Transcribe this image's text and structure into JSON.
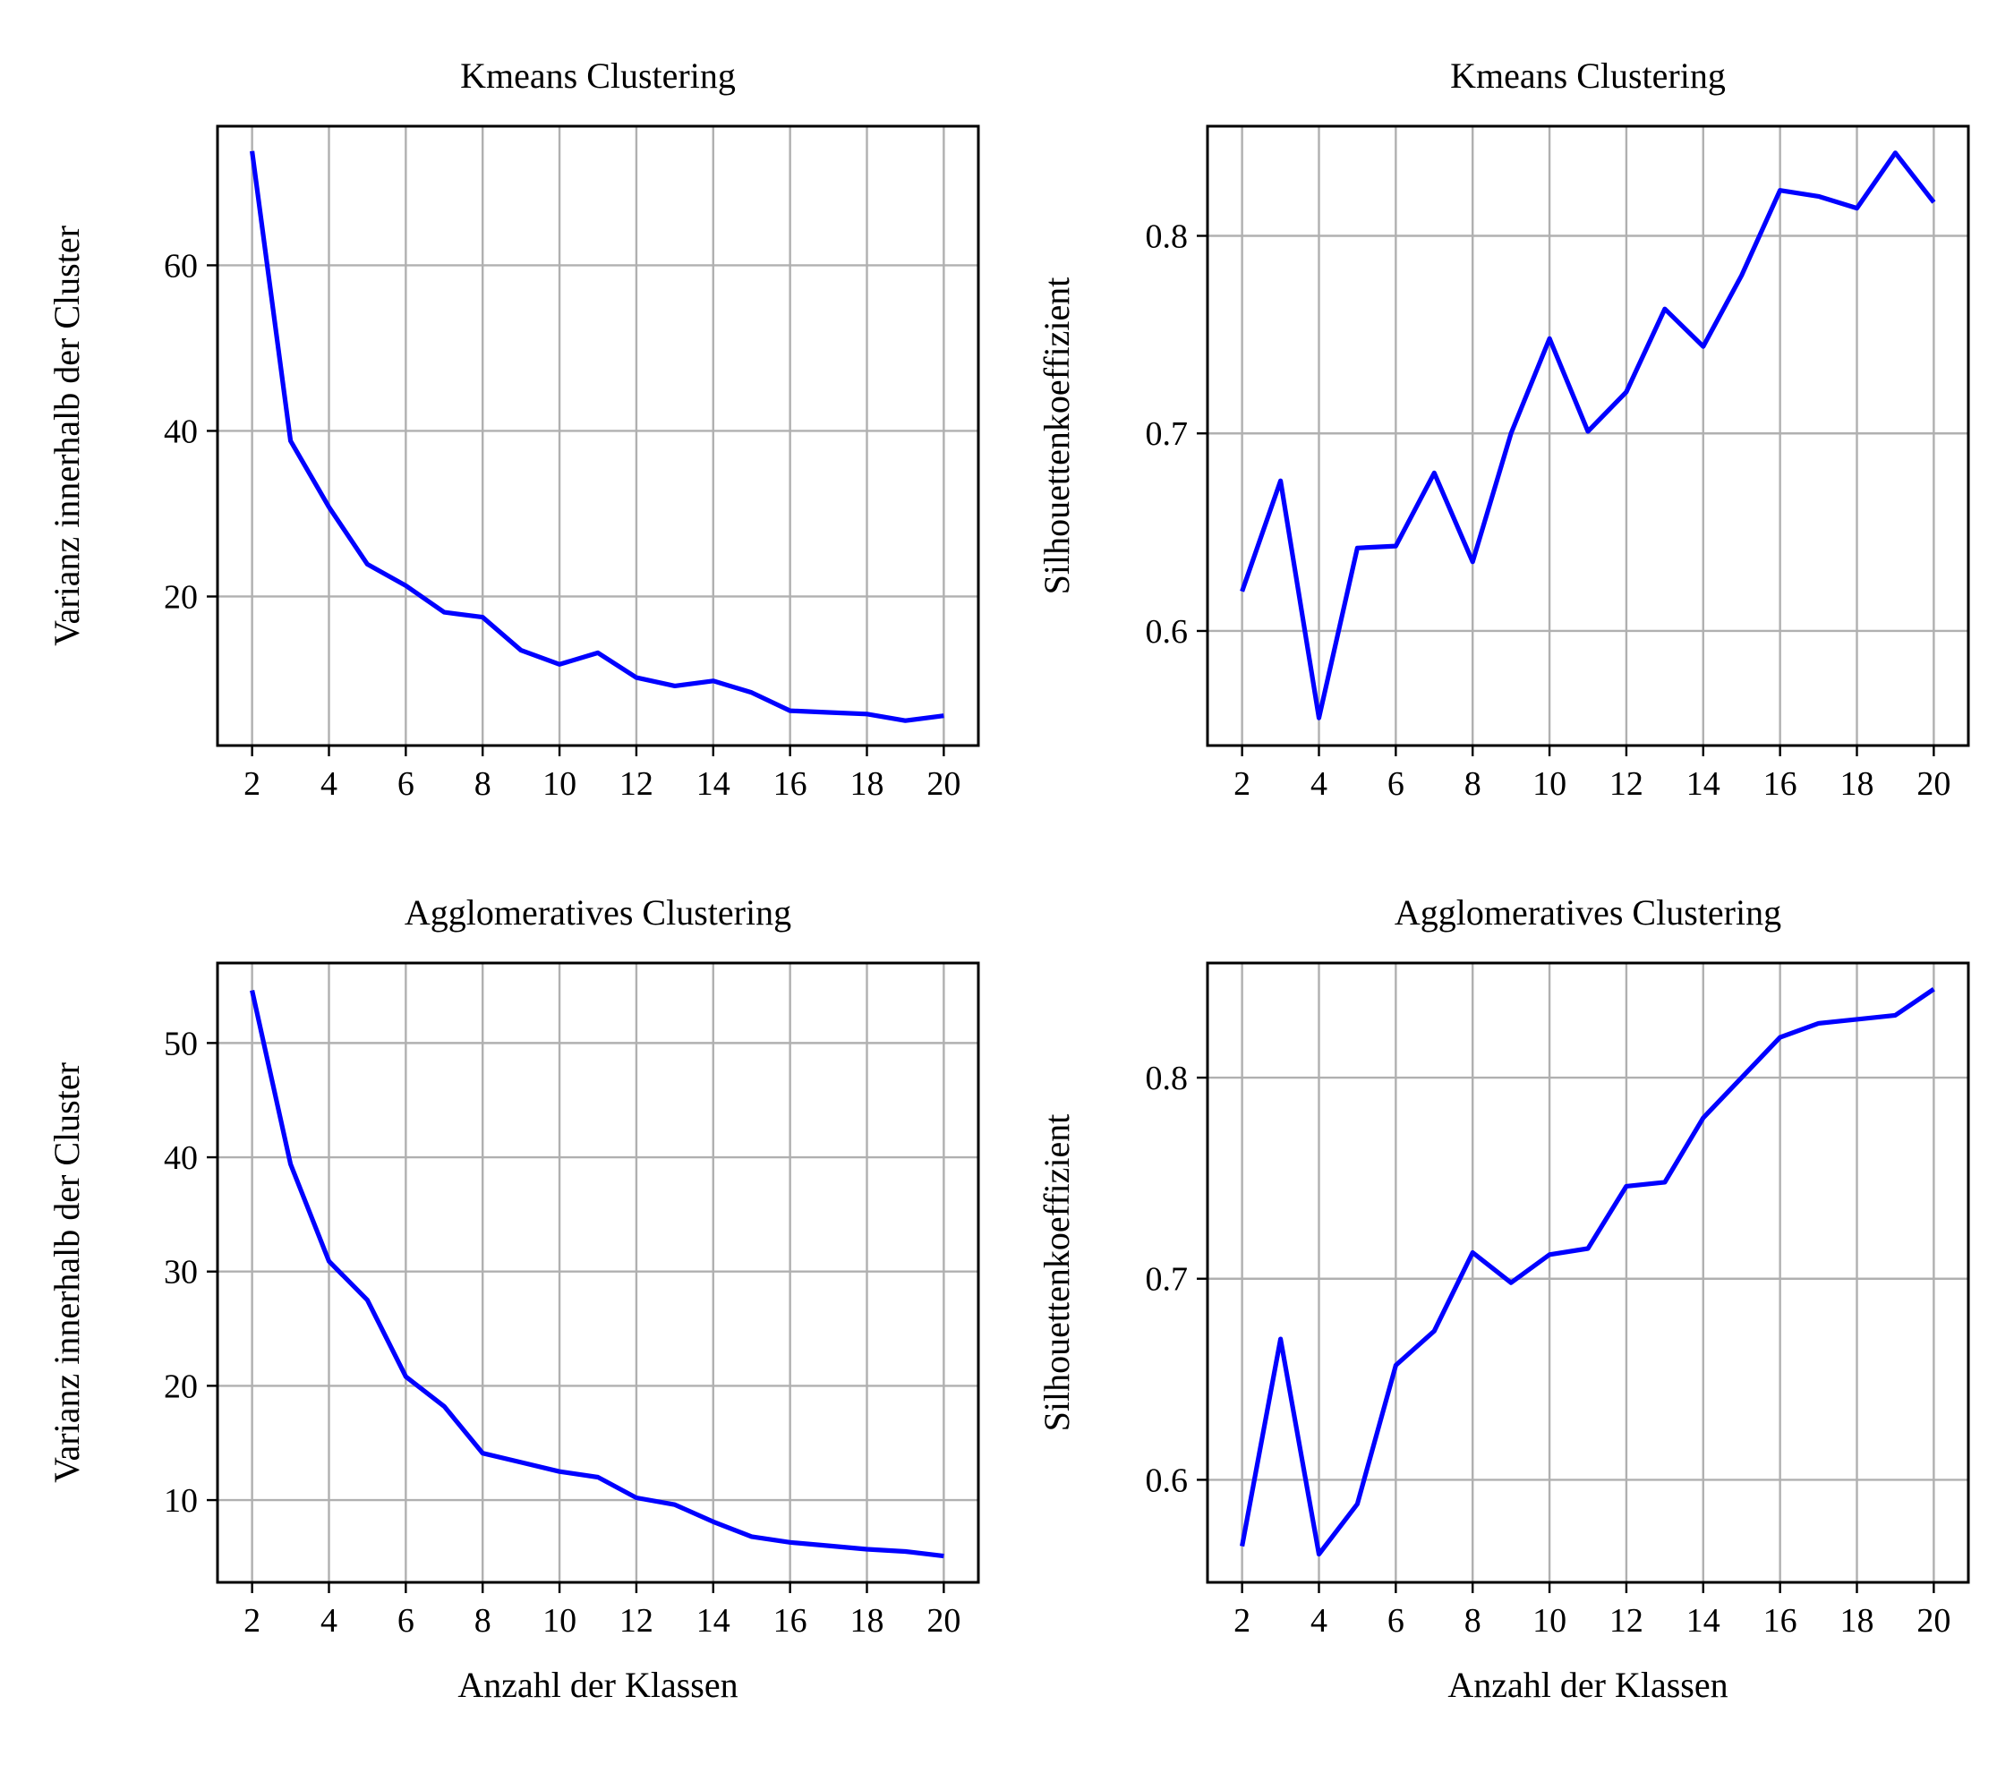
{
  "chart_data": [
    {
      "type": "line",
      "title": "Kmeans Clustering",
      "xlabel": "",
      "ylabel": "Varianz innerhalb der Cluster",
      "xlim": [
        1.1,
        20.9
      ],
      "ylim": [
        2.0,
        76.8
      ],
      "xticks": [
        2,
        4,
        6,
        8,
        10,
        12,
        14,
        16,
        18,
        20
      ],
      "xtick_labels": [
        "2",
        "4",
        "6",
        "8",
        "10",
        "12",
        "14",
        "16",
        "18",
        "20"
      ],
      "yticks": [
        20,
        40,
        60
      ],
      "ytick_labels": [
        "20",
        "40",
        "60"
      ],
      "grid": true,
      "line_color": "#0000ff",
      "x": [
        2,
        3,
        4,
        5,
        6,
        7,
        8,
        9,
        10,
        11,
        12,
        13,
        14,
        15,
        16,
        17,
        18,
        19,
        20
      ],
      "series": [
        {
          "values": [
            73.8,
            38.8,
            30.8,
            23.9,
            21.3,
            18.1,
            17.5,
            13.5,
            11.8,
            13.2,
            10.2,
            9.2,
            9.8,
            8.4,
            6.2,
            6.0,
            5.8,
            5.0,
            5.6
          ]
        }
      ]
    },
    {
      "type": "line",
      "title": "Kmeans Clustering",
      "xlabel": "",
      "ylabel": "Silhouettenkoeffizient",
      "xlim": [
        1.1,
        20.9
      ],
      "ylim": [
        0.542,
        0.8555
      ],
      "xticks": [
        2,
        4,
        6,
        8,
        10,
        12,
        14,
        16,
        18,
        20
      ],
      "xtick_labels": [
        "2",
        "4",
        "6",
        "8",
        "10",
        "12",
        "14",
        "16",
        "18",
        "20"
      ],
      "yticks": [
        0.6,
        0.7,
        0.8
      ],
      "ytick_labels": [
        "0.6",
        "0.7",
        "0.8"
      ],
      "grid": true,
      "line_color": "#0000ff",
      "x": [
        2,
        3,
        4,
        5,
        6,
        7,
        8,
        9,
        10,
        11,
        12,
        13,
        14,
        15,
        16,
        17,
        18,
        19,
        20
      ],
      "series": [
        {
          "values": [
            0.62,
            0.676,
            0.556,
            0.642,
            0.643,
            0.68,
            0.635,
            0.7,
            0.748,
            0.701,
            0.721,
            0.763,
            0.744,
            0.78,
            0.823,
            0.82,
            0.814,
            0.842,
            0.817
          ]
        }
      ]
    },
    {
      "type": "line",
      "title": "Agglomeratives Clustering",
      "xlabel": "Anzahl der Klassen",
      "ylabel": "Varianz innerhalb der Cluster",
      "xlim": [
        1.1,
        20.9
      ],
      "ylim": [
        2.8,
        57.0
      ],
      "xticks": [
        2,
        4,
        6,
        8,
        10,
        12,
        14,
        16,
        18,
        20
      ],
      "xtick_labels": [
        "2",
        "4",
        "6",
        "8",
        "10",
        "12",
        "14",
        "16",
        "18",
        "20"
      ],
      "yticks": [
        10,
        20,
        30,
        40,
        50
      ],
      "ytick_labels": [
        "10",
        "20",
        "30",
        "40",
        "50"
      ],
      "grid": true,
      "line_color": "#0000ff",
      "x": [
        2,
        3,
        4,
        5,
        6,
        7,
        8,
        9,
        10,
        11,
        12,
        13,
        14,
        15,
        16,
        17,
        18,
        19,
        20
      ],
      "series": [
        {
          "values": [
            54.6,
            39.4,
            30.9,
            27.5,
            20.8,
            18.2,
            14.1,
            13.3,
            12.5,
            12.0,
            10.2,
            9.6,
            8.1,
            6.8,
            6.3,
            6.0,
            5.7,
            5.5,
            5.1
          ]
        }
      ]
    },
    {
      "type": "line",
      "title": "Agglomeratives Clustering",
      "xlabel": "Anzahl der Klassen",
      "ylabel": "Silhouettenkoeffizient",
      "xlim": [
        1.1,
        20.9
      ],
      "ylim": [
        0.549,
        0.857
      ],
      "xticks": [
        2,
        4,
        6,
        8,
        10,
        12,
        14,
        16,
        18,
        20
      ],
      "xtick_labels": [
        "2",
        "4",
        "6",
        "8",
        "10",
        "12",
        "14",
        "16",
        "18",
        "20"
      ],
      "yticks": [
        0.6,
        0.7,
        0.8
      ],
      "ytick_labels": [
        "0.6",
        "0.7",
        "0.8"
      ],
      "grid": true,
      "line_color": "#0000ff",
      "x": [
        2,
        3,
        4,
        5,
        6,
        7,
        8,
        9,
        10,
        11,
        12,
        13,
        14,
        15,
        16,
        17,
        18,
        19,
        20
      ],
      "series": [
        {
          "values": [
            0.567,
            0.67,
            0.563,
            0.588,
            0.657,
            0.674,
            0.713,
            0.698,
            0.712,
            0.715,
            0.746,
            0.748,
            0.78,
            0.8,
            0.82,
            0.827,
            0.829,
            0.831,
            0.844
          ]
        }
      ]
    }
  ]
}
